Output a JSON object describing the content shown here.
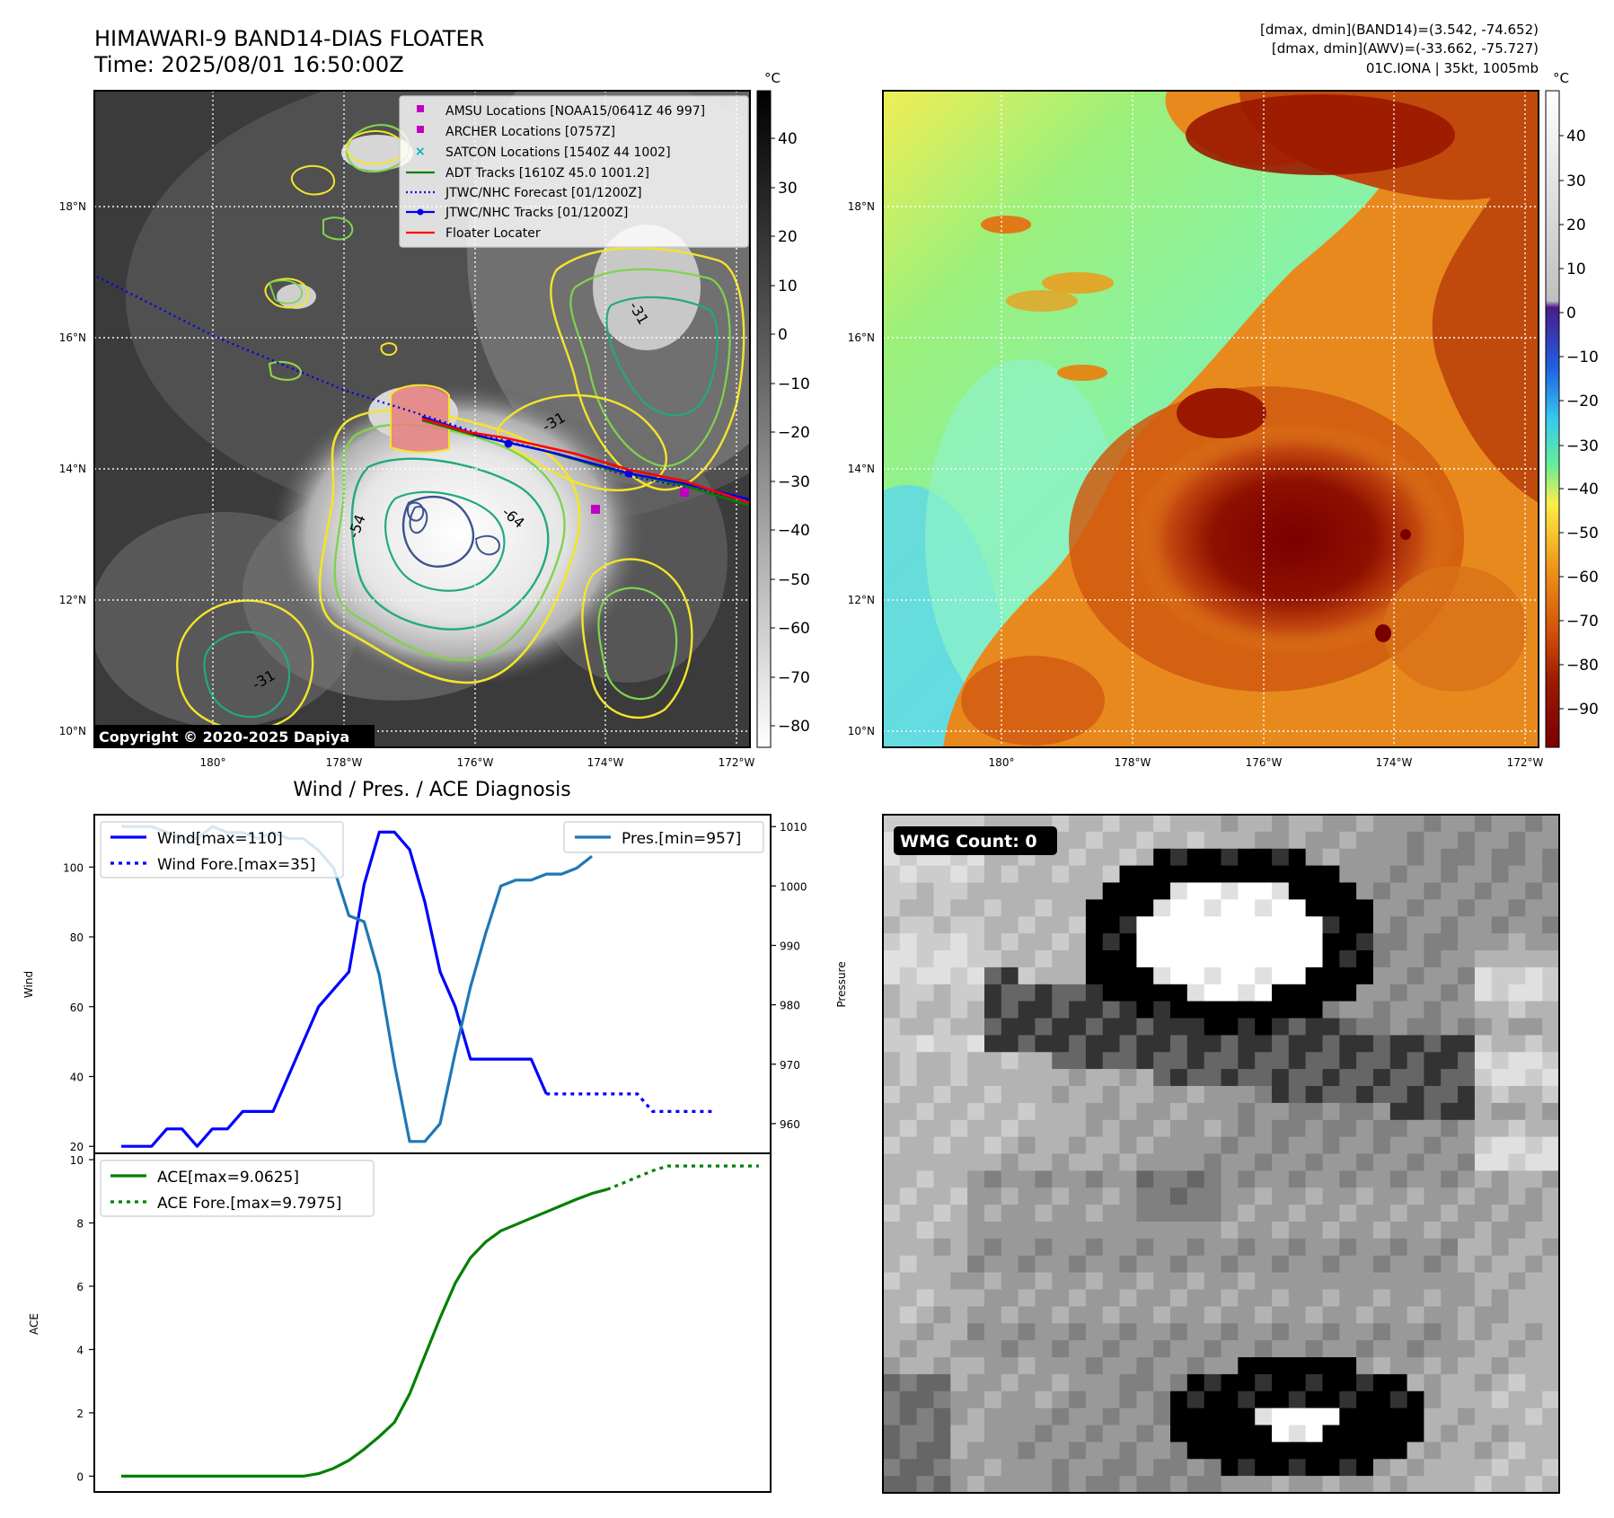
{
  "header": {
    "title": "HIMAWARI-9 BAND14-DIAS FLOATER",
    "time": "Time: 2025/08/01 16:50:00Z",
    "info_line1": "[dmax, dmin](BAND14)=(3.542, -74.652)",
    "info_line2": "[dmax, dmin](AWV)=(-33.662, -75.727)",
    "info_line3": "01C.IONA | 35kt, 1005mb"
  },
  "colors": {
    "wind": "#0000ff",
    "pressure": "#1f77b4",
    "ace": "#008000",
    "floater": "#ff0000",
    "track": "#0000ee",
    "contour_yellow": "#f2e52a",
    "contour_green": "#7fd34e",
    "contour_teal": "#22a884",
    "contour_navy": "#3b528b",
    "amsu_marker": "#c000c0",
    "satcon_marker": "#00b0c0"
  },
  "map": {
    "lat_labels": [
      "18°N",
      "16°N",
      "14°N",
      "12°N",
      "10°N"
    ],
    "lon_labels": [
      "180°",
      "178°W",
      "176°W",
      "174°W",
      "172°W"
    ],
    "copyright": "Copyright © 2020-2025 Dapiya",
    "contour_labels": [
      "-31",
      "-31",
      "-64",
      "-54",
      "-31"
    ],
    "legend": [
      {
        "label": "AMSU Locations [NOAA15/0641Z 46 997]",
        "icon": "square-marker"
      },
      {
        "label": "ARCHER Locations [0757Z]",
        "icon": "square-marker"
      },
      {
        "label": "SATCON Locations [1540Z 44 1002]",
        "icon": "x-marker"
      },
      {
        "label": "ADT Tracks [1610Z 45.0 1001.2]",
        "icon": "solid-line"
      },
      {
        "label": "JTWC/NHC Forecast [01/1200Z]",
        "icon": "dotted-line"
      },
      {
        "label": "JTWC/NHC Tracks [01/1200Z]",
        "icon": "line-dot"
      },
      {
        "label": "Floater Locater",
        "icon": "solid-line"
      }
    ]
  },
  "colorbar_gray": {
    "unit": "°C",
    "ticks": [
      "40",
      "30",
      "20",
      "10",
      "0",
      "−10",
      "−20",
      "−30",
      "−40",
      "−50",
      "−60",
      "−70",
      "−80"
    ]
  },
  "colorbar_color": {
    "unit": "°C",
    "ticks": [
      "40",
      "30",
      "20",
      "10",
      "0",
      "−10",
      "−20",
      "−30",
      "−40",
      "−50",
      "−60",
      "−70",
      "−80",
      "−90"
    ]
  },
  "wmg": {
    "label": "WMG Count: 0"
  },
  "chart_data": [
    {
      "type": "line",
      "title": "Wind / Pres. / ACE Diagnosis",
      "ylabel": "Wind",
      "y2label": "Pressure",
      "ylim": [
        18,
        115
      ],
      "y2lim": [
        955,
        1012
      ],
      "yticks": [
        20,
        40,
        60,
        80,
        100
      ],
      "y2ticks": [
        960,
        970,
        980,
        990,
        1000,
        1010
      ],
      "legend_left": [
        "Wind[max=110]",
        "Wind Fore.[max=35]"
      ],
      "legend_right": [
        "Pres.[min=957]"
      ],
      "series": [
        {
          "name": "Wind[max=110]",
          "style": "solid",
          "values": [
            20,
            20,
            20,
            25,
            25,
            20,
            25,
            25,
            30,
            30,
            30,
            40,
            50,
            60,
            65,
            70,
            95,
            110,
            110,
            105,
            90,
            70,
            60,
            45,
            45,
            45,
            45,
            45,
            35
          ]
        },
        {
          "name": "Wind Fore.[max=35]",
          "style": "dotted",
          "x_start": 28,
          "values": [
            35,
            35,
            35,
            35,
            35,
            35,
            35,
            30,
            30,
            30,
            30,
            30
          ]
        },
        {
          "name": "Pres.[min=957]",
          "style": "solid",
          "axis": "right",
          "values": [
            1010,
            1010,
            1010,
            1009,
            1008,
            1008,
            1010,
            1009,
            1009,
            1008,
            1009,
            1008,
            1008,
            1006,
            1003,
            995,
            994,
            985,
            970,
            957,
            957,
            960,
            972,
            983,
            992,
            1000,
            1001,
            1001,
            1002,
            1002,
            1003,
            1005
          ]
        }
      ]
    },
    {
      "type": "line",
      "ylabel": "ACE",
      "ylim": [
        -0.5,
        10.2
      ],
      "yticks": [
        0,
        2,
        4,
        6,
        8,
        10
      ],
      "legend": [
        "ACE[max=9.0625]",
        "ACE Fore.[max=9.7975]"
      ],
      "series": [
        {
          "name": "ACE[max=9.0625]",
          "style": "solid",
          "values": [
            0,
            0,
            0,
            0,
            0,
            0,
            0,
            0,
            0,
            0,
            0,
            0,
            0,
            0.08,
            0.25,
            0.5,
            0.85,
            1.25,
            1.7,
            2.6,
            3.8,
            5.0,
            6.1,
            6.9,
            7.4,
            7.75,
            7.95,
            8.15,
            8.35,
            8.55,
            8.75,
            8.93,
            9.06
          ]
        },
        {
          "name": "ACE Fore.[max=9.7975]",
          "style": "dotted",
          "x_start": 32,
          "values": [
            9.06,
            9.25,
            9.45,
            9.65,
            9.8,
            9.8,
            9.8,
            9.8,
            9.8,
            9.8,
            9.8
          ]
        }
      ]
    }
  ]
}
